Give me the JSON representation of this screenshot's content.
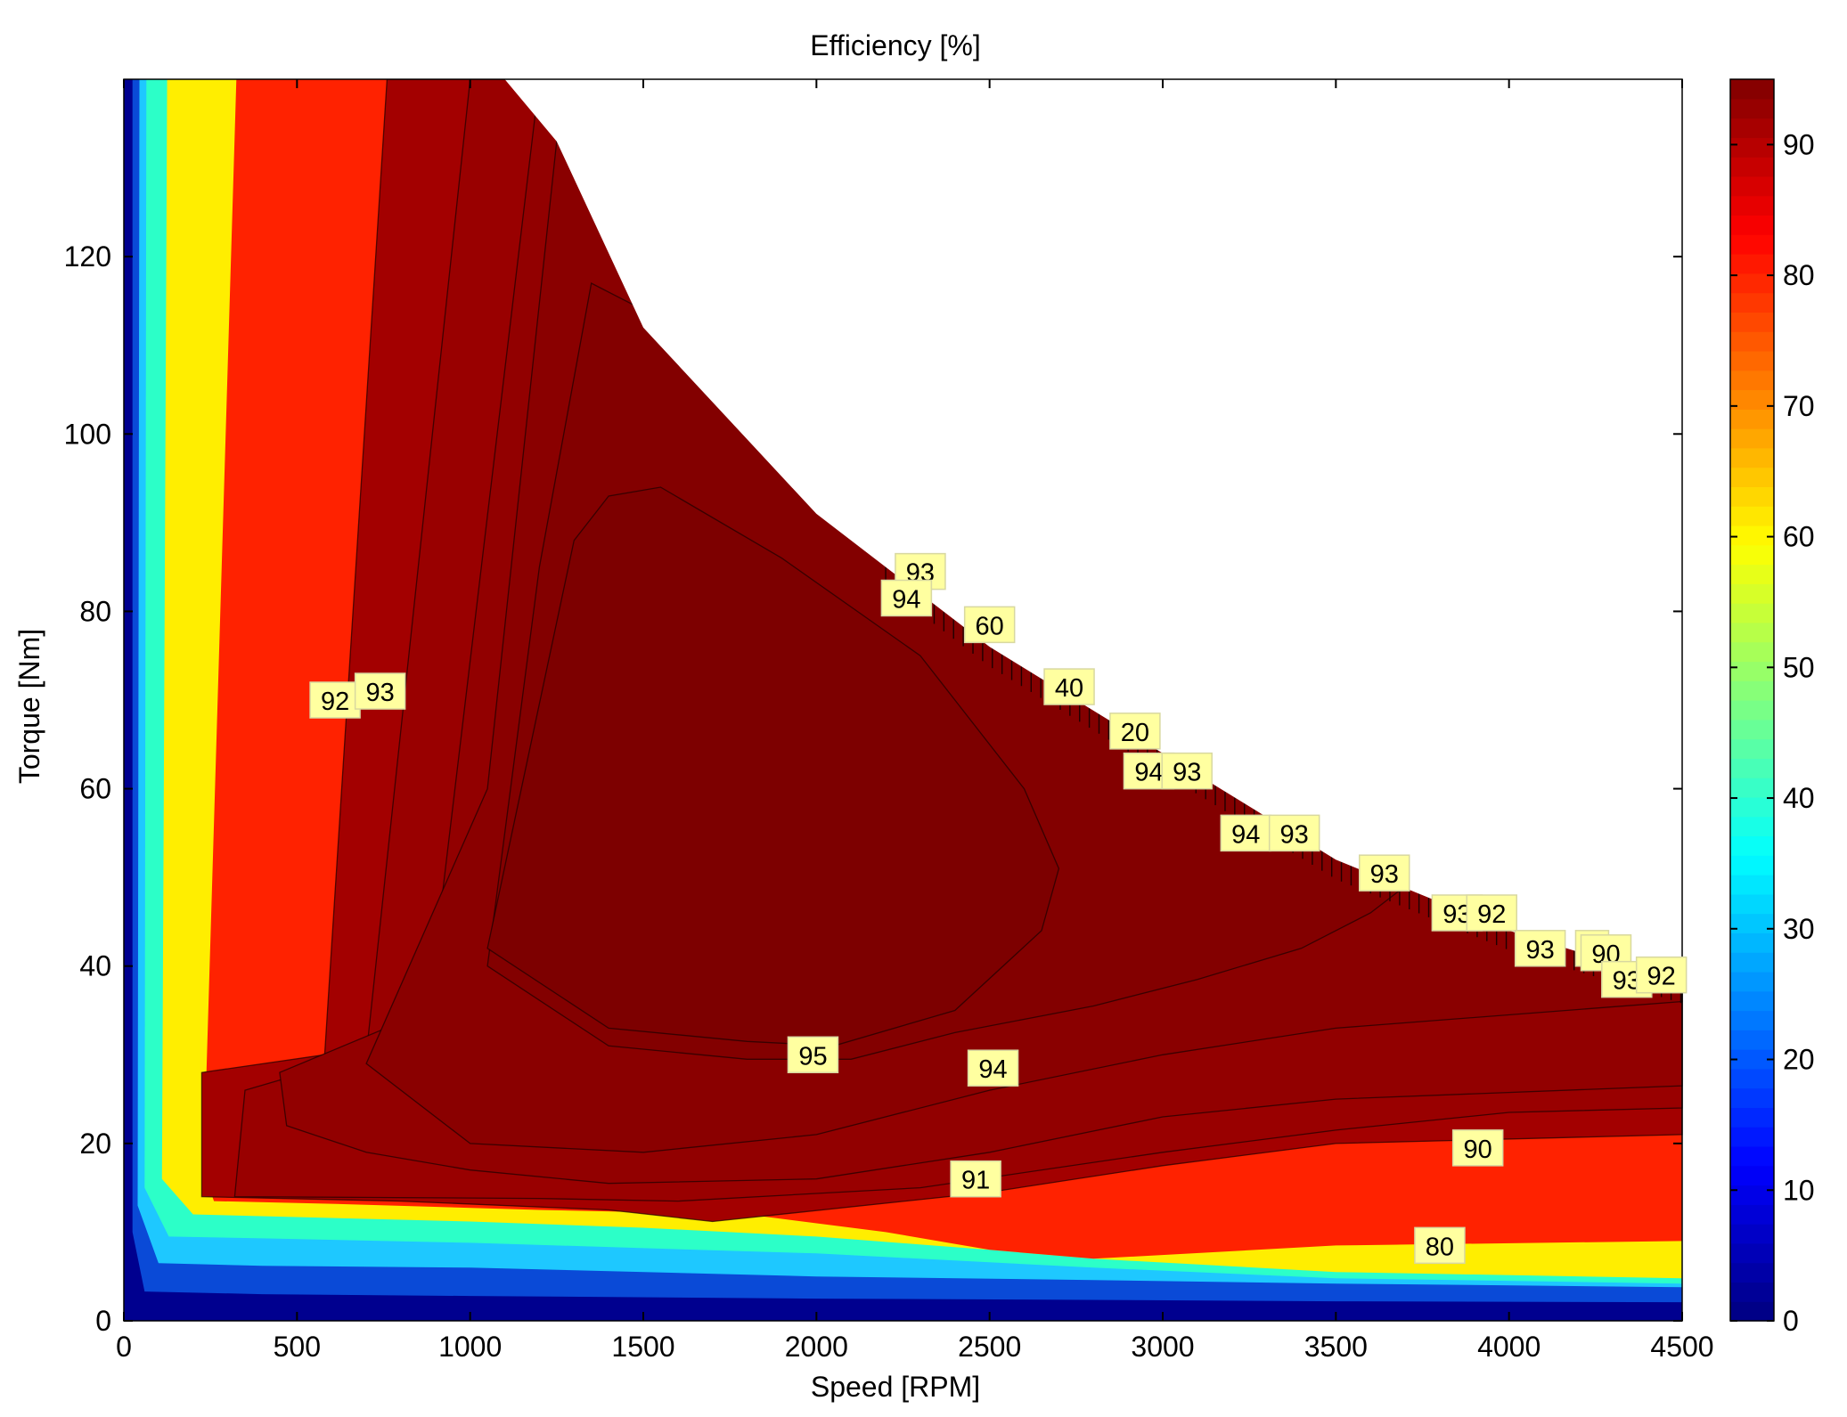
{
  "chart_data": {
    "type": "heatmap",
    "subtype": "filled-contour",
    "title": "Efficiency [%]",
    "xlabel": "Speed [RPM]",
    "ylabel": "Torque [Nm]",
    "xlim": [
      0,
      4500
    ],
    "ylim": [
      0,
      140
    ],
    "xticks": [
      0,
      500,
      1000,
      1500,
      2000,
      2500,
      3000,
      3500,
      4000,
      4500
    ],
    "yticks": [
      0,
      20,
      40,
      60,
      80,
      100,
      120
    ],
    "colorbar": {
      "min": 0,
      "max": 95,
      "ticks": [
        0,
        10,
        20,
        30,
        40,
        50,
        60,
        70,
        80,
        90
      ],
      "colormap": "jet"
    },
    "max_torque_envelope": [
      [
        0,
        140
      ],
      [
        1100,
        140
      ],
      [
        1250,
        133
      ],
      [
        1500,
        112
      ],
      [
        2000,
        91
      ],
      [
        2500,
        76
      ],
      [
        3000,
        64
      ],
      [
        3500,
        52
      ],
      [
        4000,
        44
      ],
      [
        4500,
        38
      ]
    ],
    "contour_levels": [
      {
        "level": 0,
        "color": "#00008f"
      },
      {
        "level": 20,
        "color": "#0a4ad7"
      },
      {
        "level": 40,
        "color": "#1ec8ff"
      },
      {
        "level": 50,
        "color": "#2cffc8"
      },
      {
        "level": 60,
        "color": "#ffee00"
      },
      {
        "level": 80,
        "color": "#ff2200"
      },
      {
        "level": 90,
        "color": "#a30000"
      },
      {
        "level": 91,
        "color": "#990000"
      },
      {
        "level": 92,
        "color": "#920000"
      },
      {
        "level": 93,
        "color": "#8a0000"
      },
      {
        "level": 94,
        "color": "#830000"
      },
      {
        "level": 95,
        "color": "#7d0000"
      }
    ],
    "contour_labels": [
      {
        "text": "92",
        "x": 610,
        "y": 70
      },
      {
        "text": "93",
        "x": 740,
        "y": 71
      },
      {
        "text": "93",
        "x": 2300,
        "y": 84.5
      },
      {
        "text": "94",
        "x": 2260,
        "y": 81.5
      },
      {
        "text": "60",
        "x": 2500,
        "y": 78.5
      },
      {
        "text": "40",
        "x": 2730,
        "y": 71.5
      },
      {
        "text": "20",
        "x": 2920,
        "y": 66.5
      },
      {
        "text": "94",
        "x": 2960,
        "y": 62
      },
      {
        "text": "93",
        "x": 3070,
        "y": 62
      },
      {
        "text": "94",
        "x": 3240,
        "y": 55
      },
      {
        "text": "93",
        "x": 3380,
        "y": 55
      },
      {
        "text": "93",
        "x": 3640,
        "y": 50.5
      },
      {
        "text": "93",
        "x": 3850,
        "y": 46
      },
      {
        "text": "92",
        "x": 3950,
        "y": 46
      },
      {
        "text": "93",
        "x": 4090,
        "y": 42
      },
      {
        "text": "8",
        "x": 4240,
        "y": 42
      },
      {
        "text": "90",
        "x": 4280,
        "y": 41.5
      },
      {
        "text": "93",
        "x": 4340,
        "y": 38.5
      },
      {
        "text": "92",
        "x": 4440,
        "y": 39
      },
      {
        "text": "95",
        "x": 1990,
        "y": 30
      },
      {
        "text": "94",
        "x": 2510,
        "y": 28.5
      },
      {
        "text": "90",
        "x": 3910,
        "y": 19.5
      },
      {
        "text": "91",
        "x": 2460,
        "y": 16
      },
      {
        "text": "80",
        "x": 3800,
        "y": 8.5
      }
    ]
  }
}
